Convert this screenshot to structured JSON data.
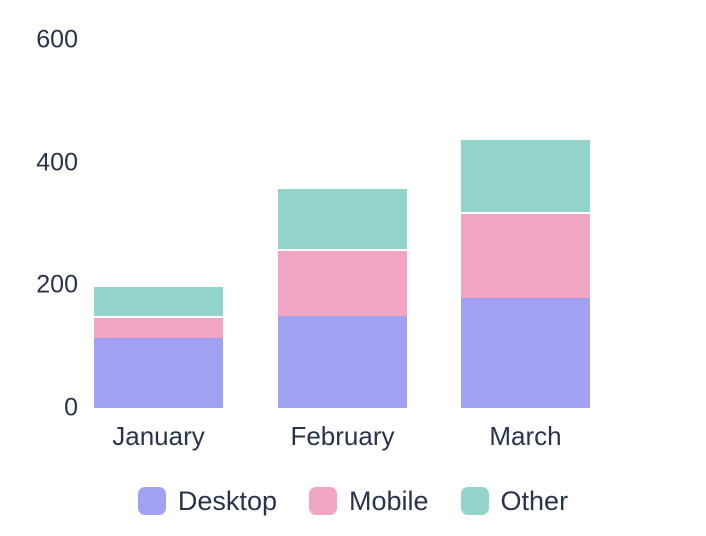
{
  "chart_data": {
    "type": "bar",
    "stacked": true,
    "title": "",
    "categories": [
      "January",
      "February",
      "March"
    ],
    "series": [
      {
        "name": "Desktop",
        "color": "#a1a1f1",
        "values": [
          115,
          150,
          180
        ]
      },
      {
        "name": "Mobile",
        "color": "#f1a5c5",
        "values": [
          35,
          110,
          140
        ]
      },
      {
        "name": "Other",
        "color": "#92d4cc",
        "values": [
          50,
          100,
          120
        ]
      }
    ],
    "ylim": [
      0,
      600
    ],
    "yticks": [
      0,
      200,
      400,
      600
    ],
    "grid": false,
    "axis_line": false,
    "legend_position": "bottom",
    "background": "#ffffff",
    "axis_text_color": "#28344c"
  }
}
